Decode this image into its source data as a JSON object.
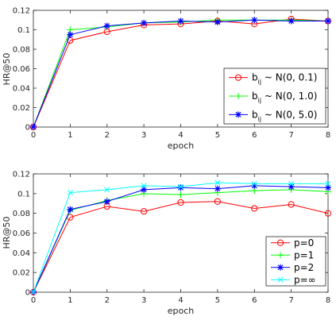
{
  "chart_data": [
    {
      "type": "line",
      "title": "",
      "xlabel": "epoch",
      "ylabel": "HR@50",
      "xlim": [
        0,
        8
      ],
      "ylim": [
        0,
        0.12
      ],
      "xticks": [
        0,
        1,
        2,
        3,
        4,
        5,
        6,
        7,
        8
      ],
      "yticks": [
        0,
        0.02,
        0.04,
        0.06,
        0.08,
        0.1,
        0.12
      ],
      "xtick_labels": [
        "0",
        "1",
        "2",
        "3",
        "4",
        "5",
        "6",
        "7",
        "8"
      ],
      "ytick_labels": [
        "0",
        "0.02",
        "0.04",
        "0.06",
        "0.08",
        "0.1",
        "0.12"
      ],
      "legend_position": "lower-right",
      "x": [
        0,
        1,
        2,
        3,
        4,
        5,
        6,
        7,
        8
      ],
      "series": [
        {
          "name": "b_ij ~ N(0, 0.1)",
          "label_main": "b",
          "label_sub": "ij",
          "label_rest": " ~ N(0, 0.1)",
          "color": "#ff0000",
          "marker": "circle",
          "values": [
            0.0,
            0.089,
            0.098,
            0.105,
            0.106,
            0.109,
            0.106,
            0.111,
            0.109
          ]
        },
        {
          "name": "b_ij ~ N(0, 1.0)",
          "label_main": "b",
          "label_sub": "ij",
          "label_rest": " ~ N(0, 1.0)",
          "color": "#00ff00",
          "marker": "plus",
          "values": [
            0.0,
            0.1,
            0.103,
            0.107,
            0.108,
            0.11,
            0.11,
            0.11,
            0.109
          ]
        },
        {
          "name": "b_ij ~ N(0, 5.0)",
          "label_main": "b",
          "label_sub": "ij",
          "label_rest": " ~ N(0, 5.0)",
          "color": "#0000ff",
          "marker": "star",
          "values": [
            0.0,
            0.095,
            0.104,
            0.107,
            0.109,
            0.108,
            0.11,
            0.109,
            0.109
          ]
        }
      ]
    },
    {
      "type": "line",
      "title": "",
      "xlabel": "epoch",
      "ylabel": "HR@50",
      "xlim": [
        0,
        8
      ],
      "ylim": [
        0,
        0.12
      ],
      "xticks": [
        0,
        1,
        2,
        3,
        4,
        5,
        6,
        7,
        8
      ],
      "yticks": [
        0,
        0.02,
        0.04,
        0.06,
        0.08,
        0.1,
        0.12
      ],
      "xtick_labels": [
        "0",
        "1",
        "2",
        "3",
        "4",
        "5",
        "6",
        "7",
        "8"
      ],
      "ytick_labels": [
        "0",
        "0.02",
        "0.04",
        "0.06",
        "0.08",
        "0.1",
        "0.12"
      ],
      "legend_position": "lower-right",
      "x": [
        0,
        1,
        2,
        3,
        4,
        5,
        6,
        7,
        8
      ],
      "series": [
        {
          "name": "p=0",
          "label_main": "p=0",
          "label_sub": "",
          "label_rest": "",
          "color": "#ff0000",
          "marker": "circle",
          "values": [
            0.0,
            0.076,
            0.087,
            0.082,
            0.091,
            0.092,
            0.085,
            0.089,
            0.08
          ]
        },
        {
          "name": "p=1",
          "label_main": "p=1",
          "label_sub": "",
          "label_rest": "",
          "color": "#00ff00",
          "marker": "plus",
          "values": [
            0.0,
            0.083,
            0.093,
            0.1,
            0.099,
            0.101,
            0.103,
            0.104,
            0.102
          ]
        },
        {
          "name": "p=2",
          "label_main": "p=2",
          "label_sub": "",
          "label_rest": "",
          "color": "#0000ff",
          "marker": "star",
          "values": [
            0.0,
            0.084,
            0.092,
            0.104,
            0.106,
            0.105,
            0.108,
            0.107,
            0.106
          ]
        },
        {
          "name": "p=∞",
          "label_main": "p=∞",
          "label_sub": "",
          "label_rest": "",
          "color": "#00ffff",
          "marker": "cross",
          "values": [
            0.0,
            0.101,
            0.104,
            0.108,
            0.107,
            0.111,
            0.11,
            0.11,
            0.11
          ]
        }
      ]
    }
  ]
}
